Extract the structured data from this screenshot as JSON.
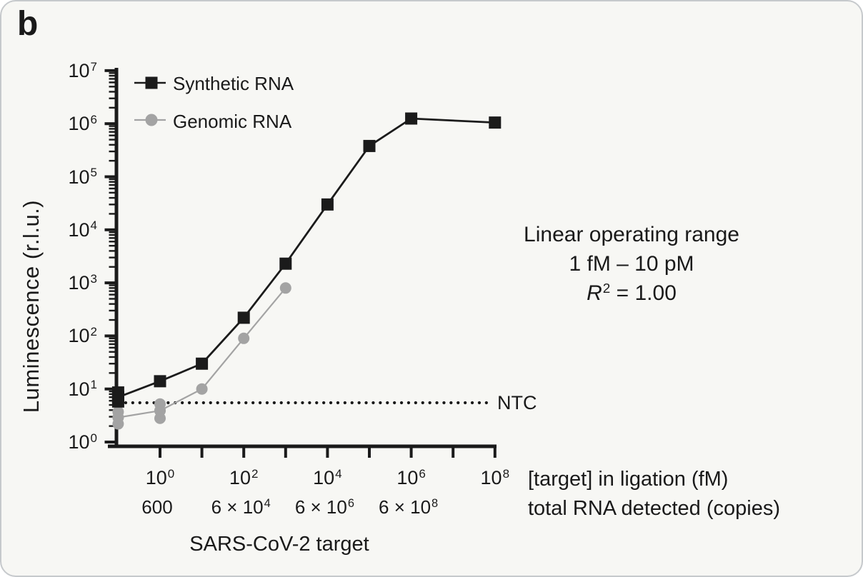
{
  "panel_label": "b",
  "legend": [
    {
      "label": "Synthetic RNA",
      "marker": "square",
      "color": "#1b1b1b"
    },
    {
      "label": "Genomic RNA",
      "marker": "circle",
      "color": "#a3a3a3"
    }
  ],
  "annotation": {
    "line1": "Linear operating range",
    "line2": "1 fM – 10 pM",
    "r2_base": "R",
    "r2_exp": "2",
    "r2_rest": " = 1.00"
  },
  "axes": {
    "y_title": "Luminescence (r.l.u.)",
    "x_title": "SARS-CoV-2 target",
    "right_label_line1": "[target] in ligation (fM)",
    "right_label_line2": "total RNA detected (copies)",
    "y_ticks": [
      {
        "base": "10",
        "exp": "0"
      },
      {
        "base": "10",
        "exp": "1"
      },
      {
        "base": "10",
        "exp": "2"
      },
      {
        "base": "10",
        "exp": "3"
      },
      {
        "base": "10",
        "exp": "4"
      },
      {
        "base": "10",
        "exp": "5"
      },
      {
        "base": "10",
        "exp": "6"
      },
      {
        "base": "10",
        "exp": "7"
      }
    ],
    "x_major_exps": [
      0,
      1,
      2,
      3,
      4,
      5,
      6,
      7,
      8
    ],
    "x_labels_row1": [
      {
        "base": "10",
        "exp": "0",
        "at_exp": 0
      },
      {
        "base": "10",
        "exp": "2",
        "at_exp": 2
      },
      {
        "base": "10",
        "exp": "4",
        "at_exp": 4
      },
      {
        "base": "10",
        "exp": "6",
        "at_exp": 6
      },
      {
        "base": "10",
        "exp": "8",
        "at_exp": 8
      }
    ],
    "x_labels_row2": [
      {
        "pre": "600",
        "exp": "",
        "at_exp": 0
      },
      {
        "pre": "6 × 10",
        "exp": "4",
        "at_exp": 2
      },
      {
        "pre": "6 × 10",
        "exp": "6",
        "at_exp": 4
      },
      {
        "pre": "6 × 10",
        "exp": "8",
        "at_exp": 6
      }
    ]
  },
  "chart_data": {
    "type": "line",
    "title": "",
    "xlabel": "[target] in ligation (fM)",
    "ylabel": "Luminescence (r.l.u.)",
    "x_scale": "log",
    "y_scale": "log",
    "xlim": [
      0.09,
      100000000
    ],
    "ylim": [
      1,
      10000000
    ],
    "grid": false,
    "legend_position": "top-left",
    "series": [
      {
        "name": "Synthetic RNA",
        "marker": "square",
        "color": "#1b1b1b",
        "x": [
          0.1,
          1,
          10,
          100,
          1000,
          10000,
          100000,
          1000000,
          100000000
        ],
        "y": [
          7,
          14,
          30,
          220,
          2300,
          30000,
          380000,
          1250000,
          1050000
        ],
        "replicates": [
          {
            "x": 0.1,
            "y": [
              5.8,
              7,
              8.6
            ]
          }
        ]
      },
      {
        "name": "Genomic RNA",
        "marker": "circle",
        "color": "#a3a3a3",
        "x": [
          0.1,
          1,
          10,
          100,
          1000
        ],
        "y": [
          2.9,
          3.9,
          10,
          90,
          800
        ],
        "replicates": [
          {
            "x": 0.1,
            "y": [
              2.2,
              2.9,
              3.7
            ]
          },
          {
            "x": 1,
            "y": [
              2.8,
              3.9,
              5.2
            ]
          }
        ]
      }
    ],
    "ntc": {
      "label": "NTC",
      "y": 5.5
    }
  }
}
